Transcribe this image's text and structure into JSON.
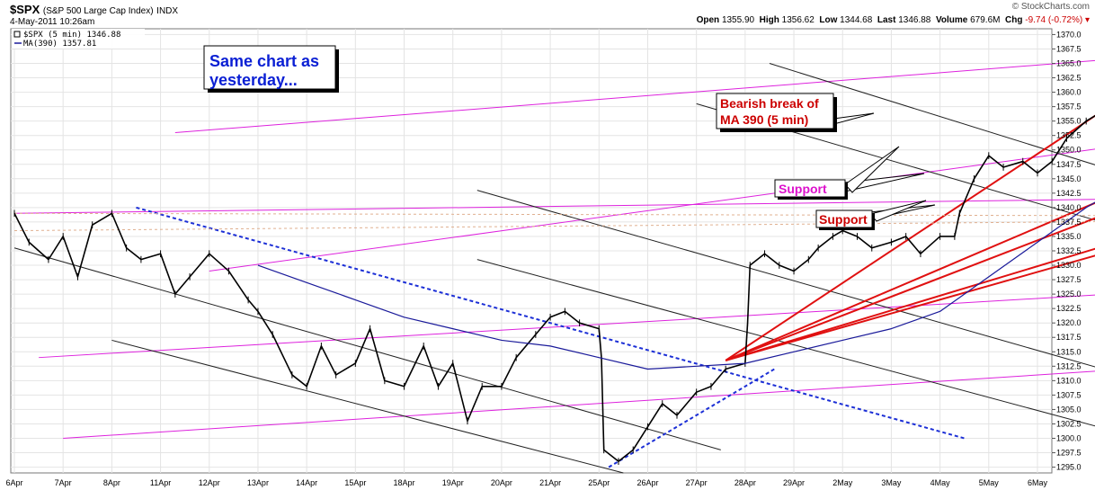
{
  "header": {
    "symbol": "$SPX",
    "name": "(S&P 500 Large Cap Index)",
    "exchange": "INDX",
    "timestamp": "4-May-2011 10:26am",
    "brand": "© StockCharts.com",
    "open_label": "Open",
    "open": "1355.90",
    "high_label": "High",
    "high": "1356.62",
    "low_label": "Low",
    "low": "1344.68",
    "last_label": "Last",
    "last": "1346.88",
    "volume_label": "Volume",
    "volume": "679.6M",
    "chg_label": "Chg",
    "chg": "-9.74 (-0.72%)"
  },
  "legend": {
    "price": "$SPX (5 min) 1346.88",
    "ma": "MA(390) 1357.81"
  },
  "annotations": {
    "note": [
      "Same chart as",
      "yesterday..."
    ],
    "bearish": [
      "Bearish break of",
      "MA 390 (5 min)"
    ],
    "support1": "Support",
    "support2": "Support"
  },
  "colors": {
    "price": "#000000",
    "ma": "#1a1a9a",
    "trend_red": "#e01010",
    "channel_magenta": "#dd22dd",
    "channel_black": "#222222",
    "trend_blue": "#1c2fd6",
    "support_magenta": "#dd11cc",
    "grid": "#e4e4e4"
  },
  "chart_data": {
    "type": "line",
    "x_ticks": [
      "6Apr",
      "7Apr",
      "8Apr",
      "11Apr",
      "12Apr",
      "13Apr",
      "14Apr",
      "15Apr",
      "18Apr",
      "19Apr",
      "20Apr",
      "21Apr",
      "25Apr",
      "26Apr",
      "27Apr",
      "28Apr",
      "29Apr",
      "2May",
      "3May",
      "4May",
      "5May",
      "6May"
    ],
    "y_ticks": [
      1295,
      1297.5,
      1300,
      1302.5,
      1305,
      1307.5,
      1310,
      1312.5,
      1315,
      1317.5,
      1320,
      1322.5,
      1325,
      1327.5,
      1330,
      1332.5,
      1335,
      1337.5,
      1340,
      1342.5,
      1345,
      1347.5,
      1350,
      1352.5,
      1355,
      1357.5,
      1360,
      1362.5,
      1365,
      1367.5,
      1370
    ],
    "ylim": [
      1294,
      1371
    ],
    "grid": true,
    "legend_position": "top-left",
    "series": [
      {
        "name": "$SPX (5 min)",
        "values": [
          [
            0,
            1339
          ],
          [
            0.3,
            1334
          ],
          [
            0.7,
            1331
          ],
          [
            1,
            1335
          ],
          [
            1.3,
            1328
          ],
          [
            1.6,
            1337
          ],
          [
            2,
            1339
          ],
          [
            2.3,
            1333
          ],
          [
            2.6,
            1331
          ],
          [
            3,
            1332
          ],
          [
            3.3,
            1325
          ],
          [
            3.6,
            1328
          ],
          [
            4,
            1332
          ],
          [
            4.4,
            1329
          ],
          [
            4.8,
            1324
          ],
          [
            5,
            1322
          ],
          [
            5.3,
            1318
          ],
          [
            5.7,
            1311
          ],
          [
            6,
            1309
          ],
          [
            6.3,
            1316
          ],
          [
            6.6,
            1311
          ],
          [
            7,
            1313
          ],
          [
            7.3,
            1319
          ],
          [
            7.6,
            1310
          ],
          [
            8,
            1309
          ],
          [
            8.4,
            1316
          ],
          [
            8.7,
            1309
          ],
          [
            9,
            1313
          ],
          [
            9.3,
            1303
          ],
          [
            9.6,
            1309
          ],
          [
            10,
            1309
          ],
          [
            10.3,
            1314
          ],
          [
            10.7,
            1318
          ],
          [
            11,
            1321
          ],
          [
            11.3,
            1322
          ],
          [
            11.6,
            1320
          ],
          [
            12,
            1319
          ],
          [
            12.05,
            1314
          ],
          [
            12.1,
            1298
          ],
          [
            12.4,
            1296
          ],
          [
            12.7,
            1298
          ],
          [
            13,
            1302
          ],
          [
            13.3,
            1306
          ],
          [
            13.6,
            1304
          ],
          [
            14,
            1308
          ],
          [
            14.3,
            1309
          ],
          [
            14.6,
            1312
          ],
          [
            15,
            1313
          ],
          [
            15.05,
            1320
          ],
          [
            15.1,
            1330
          ],
          [
            15.4,
            1332
          ],
          [
            15.7,
            1330
          ],
          [
            16,
            1329
          ],
          [
            16.3,
            1331
          ],
          [
            16.5,
            1333
          ],
          [
            16.8,
            1335
          ],
          [
            17,
            1336
          ],
          [
            17.3,
            1335
          ],
          [
            17.6,
            1333
          ],
          [
            18,
            1334
          ],
          [
            18.3,
            1335
          ],
          [
            18.6,
            1332
          ],
          [
            19,
            1335
          ],
          [
            19.3,
            1335
          ],
          [
            19.4,
            1339
          ],
          [
            19.7,
            1345
          ],
          [
            20,
            1349
          ],
          [
            20.3,
            1347
          ],
          [
            20.7,
            1348
          ],
          [
            21,
            1346
          ],
          [
            21.3,
            1348
          ],
          [
            21.6,
            1352
          ],
          [
            22,
            1355
          ],
          [
            22.4,
            1357
          ],
          [
            22.8,
            1358
          ],
          [
            23,
            1358
          ],
          [
            23.4,
            1360
          ],
          [
            23.8,
            1362
          ],
          [
            24.2,
            1365
          ],
          [
            24.6,
            1368
          ],
          [
            25,
            1369
          ],
          [
            25.3,
            1366
          ],
          [
            25.6,
            1364
          ],
          [
            26,
            1362
          ],
          [
            26.3,
            1358
          ],
          [
            26.6,
            1356
          ],
          [
            27,
            1356
          ],
          [
            27.3,
            1352
          ],
          [
            27.6,
            1350
          ],
          [
            28,
            1349
          ],
          [
            28.4,
            1354
          ],
          [
            28.6,
            1356
          ],
          [
            28.8,
            1349
          ],
          [
            28.9,
            1345
          ]
        ]
      },
      {
        "name": "MA(390)",
        "values": [
          [
            5,
            1330
          ],
          [
            6,
            1327
          ],
          [
            7,
            1324
          ],
          [
            8,
            1321
          ],
          [
            9,
            1319
          ],
          [
            10,
            1317
          ],
          [
            11,
            1316
          ],
          [
            12,
            1314
          ],
          [
            13,
            1312
          ],
          [
            14,
            1312.5
          ],
          [
            15,
            1313
          ],
          [
            16,
            1315
          ],
          [
            17,
            1317
          ],
          [
            18,
            1319
          ],
          [
            19,
            1322
          ],
          [
            20,
            1328
          ],
          [
            21,
            1334
          ],
          [
            22,
            1340
          ],
          [
            23,
            1345
          ],
          [
            24,
            1349
          ],
          [
            25,
            1352
          ],
          [
            26,
            1354
          ],
          [
            27,
            1356
          ],
          [
            28,
            1357.6
          ],
          [
            28.9,
            1357.8
          ]
        ]
      }
    ]
  }
}
